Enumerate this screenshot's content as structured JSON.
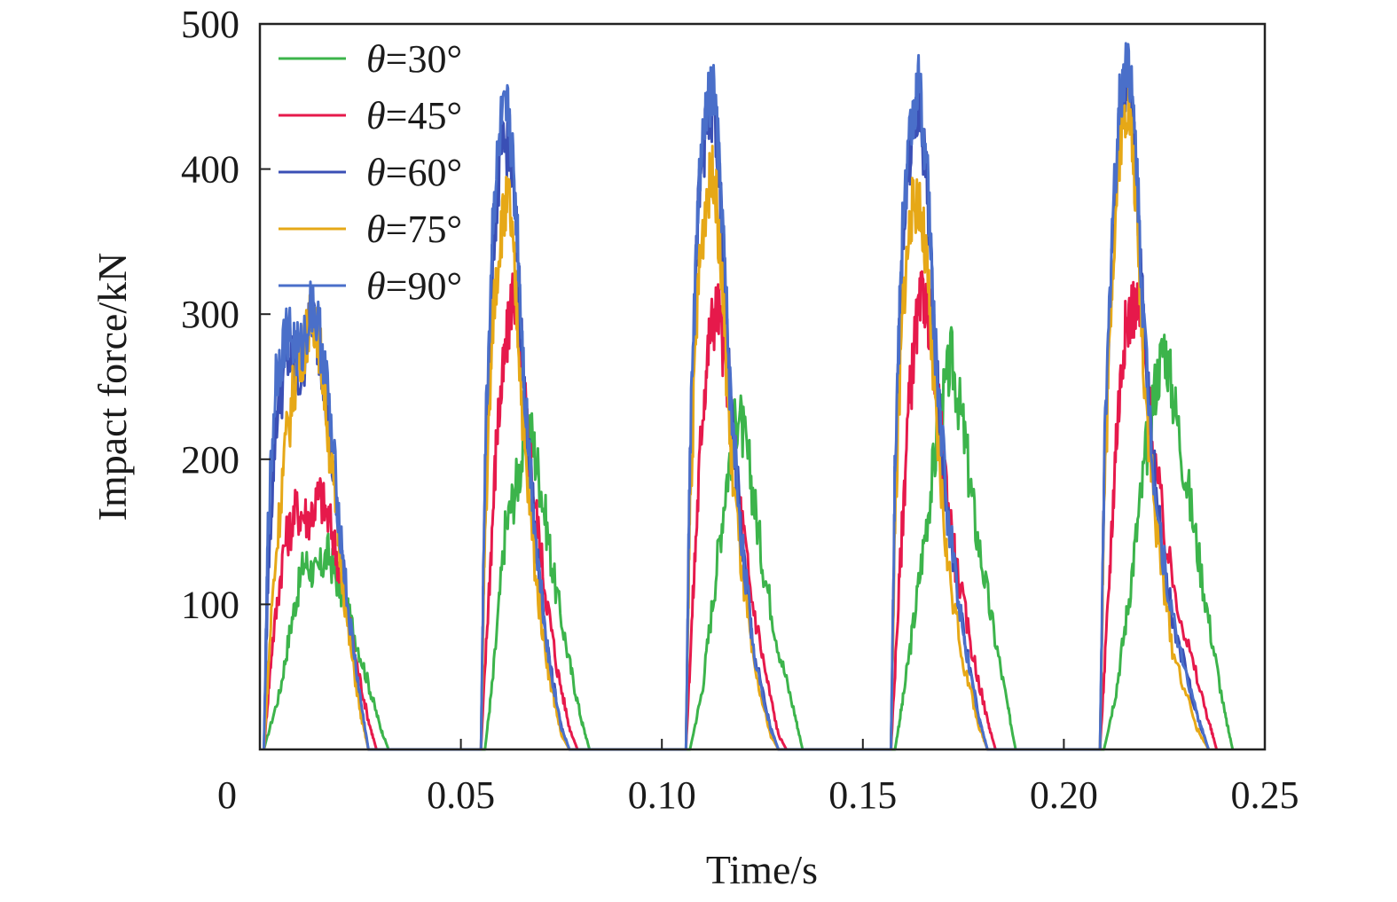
{
  "chart_data": {
    "type": "line",
    "title": "",
    "xlabel": "Time/s",
    "ylabel": "Impact force/kN",
    "xlim": [
      0,
      0.25
    ],
    "ylim": [
      0,
      500
    ],
    "x_ticks": [
      0,
      0.05,
      0.1,
      0.15,
      0.2,
      0.25
    ],
    "x_tick_labels": [
      "0",
      "0.05",
      "0.10",
      "0.15",
      "0.20",
      "0.25"
    ],
    "y_ticks": [
      100,
      200,
      300,
      400,
      500
    ],
    "y_tick_labels": [
      "100",
      "200",
      "300",
      "400",
      "500"
    ],
    "grid": false,
    "legend_position": "top-left",
    "legend_prefix": "θ",
    "series": [
      {
        "name": "=30°",
        "color": "#3cb44b",
        "points": [
          [
            0.001,
            0
          ],
          [
            0.005,
            40
          ],
          [
            0.008,
            90
          ],
          [
            0.011,
            130
          ],
          [
            0.014,
            120
          ],
          [
            0.017,
            135
          ],
          [
            0.02,
            110
          ],
          [
            0.023,
            85
          ],
          [
            0.027,
            45
          ],
          [
            0.03,
            15
          ],
          [
            0.032,
            0
          ],
          [
            0.056,
            0
          ],
          [
            0.058,
            50
          ],
          [
            0.061,
            150
          ],
          [
            0.064,
            185
          ],
          [
            0.067,
            225
          ],
          [
            0.07,
            180
          ],
          [
            0.073,
            120
          ],
          [
            0.077,
            60
          ],
          [
            0.08,
            20
          ],
          [
            0.082,
            0
          ],
          [
            0.107,
            0
          ],
          [
            0.11,
            40
          ],
          [
            0.113,
            110
          ],
          [
            0.116,
            185
          ],
          [
            0.119,
            235
          ],
          [
            0.122,
            190
          ],
          [
            0.125,
            130
          ],
          [
            0.129,
            70
          ],
          [
            0.133,
            25
          ],
          [
            0.135,
            0
          ],
          [
            0.158,
            0
          ],
          [
            0.16,
            35
          ],
          [
            0.163,
            95
          ],
          [
            0.166,
            160
          ],
          [
            0.169,
            225
          ],
          [
            0.172,
            270
          ],
          [
            0.175,
            220
          ],
          [
            0.178,
            155
          ],
          [
            0.182,
            90
          ],
          [
            0.186,
            30
          ],
          [
            0.188,
            0
          ],
          [
            0.21,
            0
          ],
          [
            0.213,
            40
          ],
          [
            0.216,
            100
          ],
          [
            0.219,
            170
          ],
          [
            0.222,
            240
          ],
          [
            0.225,
            280
          ],
          [
            0.228,
            230
          ],
          [
            0.232,
            160
          ],
          [
            0.236,
            90
          ],
          [
            0.24,
            25
          ],
          [
            0.242,
            0
          ]
        ]
      },
      {
        "name": "=45°",
        "color": "#e6194b",
        "points": [
          [
            0.001,
            0
          ],
          [
            0.003,
            70
          ],
          [
            0.006,
            140
          ],
          [
            0.009,
            165
          ],
          [
            0.012,
            160
          ],
          [
            0.015,
            175
          ],
          [
            0.018,
            150
          ],
          [
            0.021,
            105
          ],
          [
            0.024,
            60
          ],
          [
            0.027,
            20
          ],
          [
            0.029,
            0
          ],
          [
            0.055,
            0
          ],
          [
            0.057,
            110
          ],
          [
            0.059,
            220
          ],
          [
            0.061,
            270
          ],
          [
            0.063,
            320
          ],
          [
            0.065,
            265
          ],
          [
            0.068,
            180
          ],
          [
            0.071,
            110
          ],
          [
            0.074,
            55
          ],
          [
            0.077,
            15
          ],
          [
            0.079,
            0
          ],
          [
            0.106,
            0
          ],
          [
            0.108,
            120
          ],
          [
            0.11,
            230
          ],
          [
            0.112,
            290
          ],
          [
            0.114,
            305
          ],
          [
            0.116,
            260
          ],
          [
            0.119,
            180
          ],
          [
            0.122,
            110
          ],
          [
            0.126,
            50
          ],
          [
            0.129,
            10
          ],
          [
            0.131,
            0
          ],
          [
            0.157,
            0
          ],
          [
            0.159,
            110
          ],
          [
            0.161,
            220
          ],
          [
            0.163,
            285
          ],
          [
            0.165,
            315
          ],
          [
            0.167,
            290
          ],
          [
            0.17,
            200
          ],
          [
            0.173,
            130
          ],
          [
            0.177,
            70
          ],
          [
            0.181,
            20
          ],
          [
            0.183,
            0
          ],
          [
            0.209,
            0
          ],
          [
            0.211,
            100
          ],
          [
            0.213,
            215
          ],
          [
            0.215,
            285
          ],
          [
            0.217,
            305
          ],
          [
            0.219,
            300
          ],
          [
            0.222,
            210
          ],
          [
            0.226,
            130
          ],
          [
            0.231,
            70
          ],
          [
            0.236,
            20
          ],
          [
            0.238,
            0
          ]
        ]
      },
      {
        "name": "=60°",
        "color": "#3a4fb5",
        "points": [
          [
            0.001,
            0
          ],
          [
            0.002,
            120
          ],
          [
            0.004,
            230
          ],
          [
            0.007,
            270
          ],
          [
            0.01,
            255
          ],
          [
            0.013,
            300
          ],
          [
            0.016,
            260
          ],
          [
            0.019,
            170
          ],
          [
            0.022,
            90
          ],
          [
            0.025,
            30
          ],
          [
            0.027,
            0
          ],
          [
            0.055,
            0
          ],
          [
            0.056,
            180
          ],
          [
            0.058,
            350
          ],
          [
            0.06,
            410
          ],
          [
            0.062,
            420
          ],
          [
            0.064,
            350
          ],
          [
            0.066,
            230
          ],
          [
            0.069,
            130
          ],
          [
            0.072,
            60
          ],
          [
            0.075,
            15
          ],
          [
            0.077,
            0
          ],
          [
            0.106,
            0
          ],
          [
            0.107,
            200
          ],
          [
            0.109,
            370
          ],
          [
            0.111,
            430
          ],
          [
            0.113,
            440
          ],
          [
            0.115,
            360
          ],
          [
            0.117,
            240
          ],
          [
            0.12,
            140
          ],
          [
            0.123,
            65
          ],
          [
            0.127,
            15
          ],
          [
            0.129,
            0
          ],
          [
            0.157,
            0
          ],
          [
            0.158,
            190
          ],
          [
            0.16,
            360
          ],
          [
            0.162,
            420
          ],
          [
            0.164,
            440
          ],
          [
            0.166,
            390
          ],
          [
            0.168,
            270
          ],
          [
            0.171,
            160
          ],
          [
            0.175,
            80
          ],
          [
            0.179,
            20
          ],
          [
            0.181,
            0
          ],
          [
            0.209,
            0
          ],
          [
            0.21,
            180
          ],
          [
            0.212,
            350
          ],
          [
            0.214,
            440
          ],
          [
            0.216,
            460
          ],
          [
            0.218,
            400
          ],
          [
            0.22,
            280
          ],
          [
            0.223,
            170
          ],
          [
            0.227,
            90
          ],
          [
            0.233,
            25
          ],
          [
            0.236,
            0
          ]
        ]
      },
      {
        "name": "=75°",
        "color": "#e6a817",
        "points": [
          [
            0.001,
            0
          ],
          [
            0.003,
            100
          ],
          [
            0.006,
            200
          ],
          [
            0.009,
            260
          ],
          [
            0.012,
            290
          ],
          [
            0.014,
            300
          ],
          [
            0.016,
            250
          ],
          [
            0.019,
            160
          ],
          [
            0.022,
            80
          ],
          [
            0.025,
            25
          ],
          [
            0.027,
            0
          ],
          [
            0.055,
            0
          ],
          [
            0.056,
            150
          ],
          [
            0.058,
            300
          ],
          [
            0.06,
            360
          ],
          [
            0.062,
            380
          ],
          [
            0.064,
            300
          ],
          [
            0.066,
            200
          ],
          [
            0.069,
            110
          ],
          [
            0.072,
            50
          ],
          [
            0.075,
            10
          ],
          [
            0.077,
            0
          ],
          [
            0.106,
            0
          ],
          [
            0.107,
            170
          ],
          [
            0.109,
            320
          ],
          [
            0.111,
            380
          ],
          [
            0.113,
            400
          ],
          [
            0.115,
            320
          ],
          [
            0.117,
            210
          ],
          [
            0.12,
            120
          ],
          [
            0.123,
            55
          ],
          [
            0.127,
            10
          ],
          [
            0.129,
            0
          ],
          [
            0.157,
            0
          ],
          [
            0.158,
            160
          ],
          [
            0.16,
            310
          ],
          [
            0.162,
            370
          ],
          [
            0.164,
            380
          ],
          [
            0.166,
            330
          ],
          [
            0.168,
            230
          ],
          [
            0.171,
            130
          ],
          [
            0.175,
            60
          ],
          [
            0.179,
            15
          ],
          [
            0.181,
            0
          ],
          [
            0.209,
            0
          ],
          [
            0.21,
            170
          ],
          [
            0.212,
            330
          ],
          [
            0.214,
            420
          ],
          [
            0.216,
            450
          ],
          [
            0.218,
            380
          ],
          [
            0.22,
            260
          ],
          [
            0.223,
            150
          ],
          [
            0.227,
            70
          ],
          [
            0.233,
            15
          ],
          [
            0.236,
            0
          ]
        ]
      },
      {
        "name": "=90°",
        "color": "#4a6fc9",
        "points": [
          [
            0.001,
            0
          ],
          [
            0.002,
            150
          ],
          [
            0.004,
            260
          ],
          [
            0.007,
            290
          ],
          [
            0.01,
            270
          ],
          [
            0.013,
            310
          ],
          [
            0.016,
            270
          ],
          [
            0.019,
            180
          ],
          [
            0.022,
            95
          ],
          [
            0.025,
            35
          ],
          [
            0.027,
            0
          ],
          [
            0.055,
            0
          ],
          [
            0.056,
            200
          ],
          [
            0.058,
            370
          ],
          [
            0.06,
            430
          ],
          [
            0.062,
            440
          ],
          [
            0.064,
            360
          ],
          [
            0.066,
            240
          ],
          [
            0.069,
            135
          ],
          [
            0.072,
            60
          ],
          [
            0.075,
            15
          ],
          [
            0.077,
            0
          ],
          [
            0.106,
            0
          ],
          [
            0.107,
            210
          ],
          [
            0.109,
            380
          ],
          [
            0.111,
            440
          ],
          [
            0.113,
            455
          ],
          [
            0.115,
            370
          ],
          [
            0.117,
            245
          ],
          [
            0.12,
            140
          ],
          [
            0.123,
            65
          ],
          [
            0.127,
            15
          ],
          [
            0.129,
            0
          ],
          [
            0.157,
            0
          ],
          [
            0.158,
            200
          ],
          [
            0.16,
            370
          ],
          [
            0.162,
            430
          ],
          [
            0.164,
            460
          ],
          [
            0.166,
            400
          ],
          [
            0.168,
            275
          ],
          [
            0.171,
            165
          ],
          [
            0.175,
            80
          ],
          [
            0.179,
            20
          ],
          [
            0.181,
            0
          ],
          [
            0.209,
            0
          ],
          [
            0.21,
            190
          ],
          [
            0.212,
            360
          ],
          [
            0.214,
            450
          ],
          [
            0.216,
            480
          ],
          [
            0.218,
            410
          ],
          [
            0.22,
            285
          ],
          [
            0.223,
            170
          ],
          [
            0.227,
            90
          ],
          [
            0.233,
            25
          ],
          [
            0.236,
            0
          ]
        ]
      }
    ]
  }
}
